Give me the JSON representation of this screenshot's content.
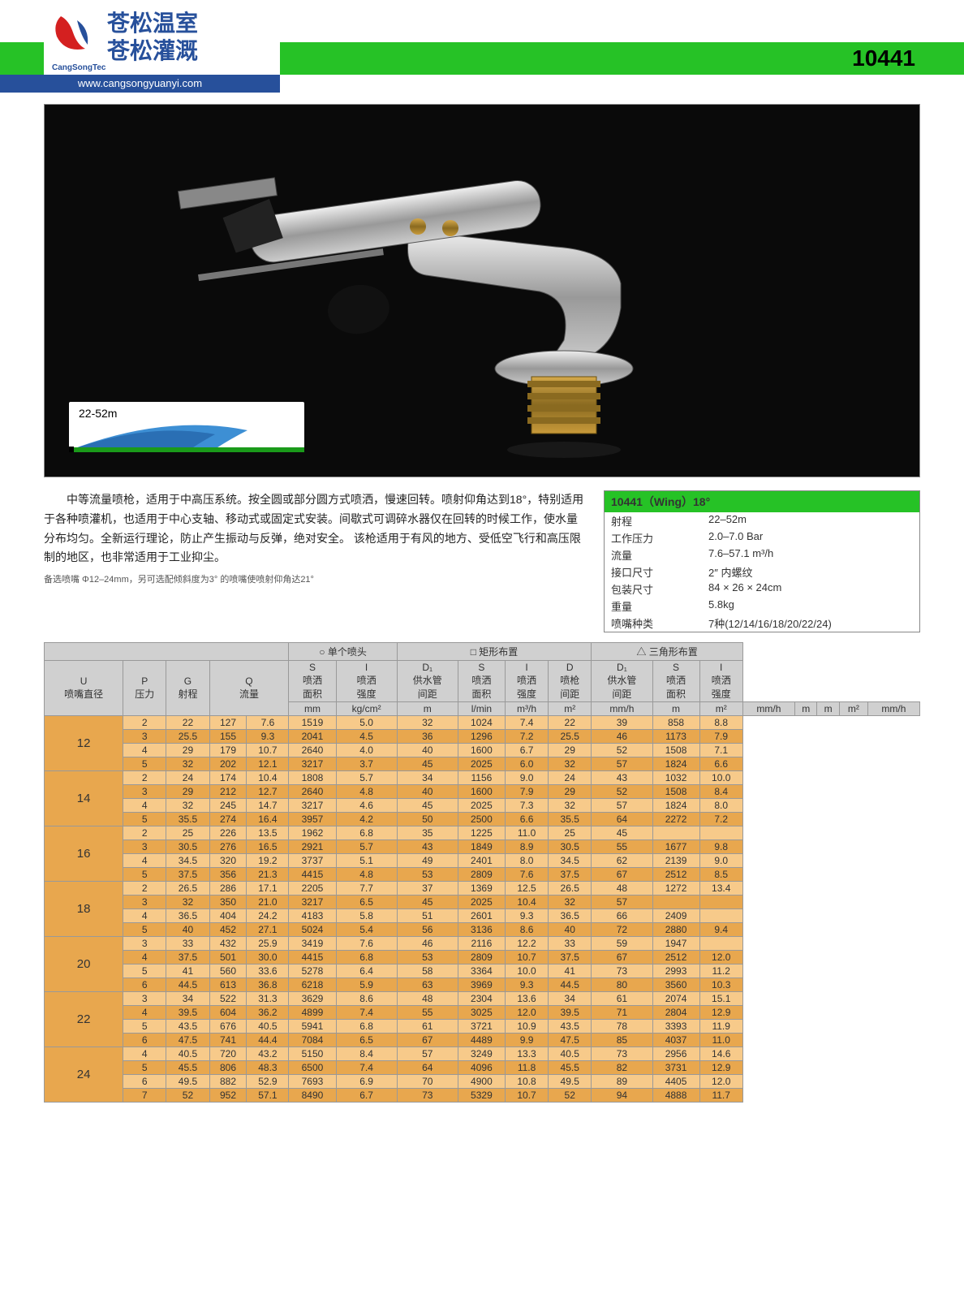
{
  "header": {
    "company_cn1": "苍松温室",
    "company_cn2": "苍松灌溉",
    "company_en": "CangSongTec",
    "url": "www.cangsongyuanyi.com",
    "product_code": "10441"
  },
  "hero": {
    "range_label": "22-52m"
  },
  "description": {
    "body": "中等流量喷枪，适用于中高压系统。按全圆或部分圆方式喷洒，慢速回转。喷射仰角达到18°，特别适用于各种喷灌机，也适用于中心支轴、移动式或固定式安装。间歇式可调碎水器仅在回转的时候工作，使水量分布均匀。全新运行理论，防止产生振动与反弹，绝对安全。 该枪适用于有风的地方、受低空飞行和高压限制的地区，也非常适用于工业抑尘。",
    "note": "备选喷嘴 Φ12–24mm，另可选配倾斜度为3° 的喷嘴使喷射仰角达21°"
  },
  "spec": {
    "title": "10441（Wing）18°",
    "rows": [
      [
        "射程",
        "22–52m"
      ],
      [
        "工作压力",
        "2.0–7.0 Bar"
      ],
      [
        "流量",
        "7.6–57.1 m³/h"
      ],
      [
        "接口尺寸",
        "2″ 内螺纹"
      ],
      [
        "包装尺寸",
        "84 × 26 × 24cm"
      ],
      [
        "重量",
        "5.8kg"
      ],
      [
        "喷嘴种类",
        "7种(12/14/16/18/20/22/24)"
      ]
    ]
  },
  "table": {
    "group_labels": [
      "○ 单个喷头",
      "□ 矩形布置",
      "△ 三角形布置"
    ],
    "headers": {
      "U": "U",
      "U2": "喷嘴直径",
      "P": "P",
      "P2": "压力",
      "G": "G",
      "G2": "射程",
      "Q": "Q",
      "Q2": "流量",
      "S": "S",
      "S2": "喷洒\n面积",
      "I": "I",
      "I2": "喷洒\n强度",
      "D1": "D₁",
      "D12": "供水管\n间距",
      "D": "D",
      "D2": "喷枪\n间距"
    },
    "units": [
      "mm",
      "kg/cm²",
      "m",
      "l/min",
      "m³/h",
      "m²",
      "mm/h",
      "m",
      "m²",
      "mm/h",
      "m",
      "m",
      "m²",
      "mm/h"
    ],
    "groups": [
      {
        "diam": "12",
        "rows": [
          [
            "2",
            "22",
            "127",
            "7.6",
            "1519",
            "5.0",
            "32",
            "1024",
            "7.4",
            "22",
            "39",
            "858",
            "8.8"
          ],
          [
            "3",
            "25.5",
            "155",
            "9.3",
            "2041",
            "4.5",
            "36",
            "1296",
            "7.2",
            "25.5",
            "46",
            "1173",
            "7.9"
          ],
          [
            "4",
            "29",
            "179",
            "10.7",
            "2640",
            "4.0",
            "40",
            "1600",
            "6.7",
            "29",
            "52",
            "1508",
            "7.1"
          ],
          [
            "5",
            "32",
            "202",
            "12.1",
            "3217",
            "3.7",
            "45",
            "2025",
            "6.0",
            "32",
            "57",
            "1824",
            "6.6"
          ]
        ]
      },
      {
        "diam": "14",
        "rows": [
          [
            "2",
            "24",
            "174",
            "10.4",
            "1808",
            "5.7",
            "34",
            "1156",
            "9.0",
            "24",
            "43",
            "1032",
            "10.0"
          ],
          [
            "3",
            "29",
            "212",
            "12.7",
            "2640",
            "4.8",
            "40",
            "1600",
            "7.9",
            "29",
            "52",
            "1508",
            "8.4"
          ],
          [
            "4",
            "32",
            "245",
            "14.7",
            "3217",
            "4.6",
            "45",
            "2025",
            "7.3",
            "32",
            "57",
            "1824",
            "8.0"
          ],
          [
            "5",
            "35.5",
            "274",
            "16.4",
            "3957",
            "4.2",
            "50",
            "2500",
            "6.6",
            "35.5",
            "64",
            "2272",
            "7.2"
          ]
        ]
      },
      {
        "diam": "16",
        "rows": [
          [
            "2",
            "25",
            "226",
            "13.5",
            "1962",
            "6.8",
            "35",
            "1225",
            "11.0",
            "25",
            "45",
            "",
            ""
          ],
          [
            "3",
            "30.5",
            "276",
            "16.5",
            "2921",
            "5.7",
            "43",
            "1849",
            "8.9",
            "30.5",
            "55",
            "1677",
            "9.8"
          ],
          [
            "4",
            "34.5",
            "320",
            "19.2",
            "3737",
            "5.1",
            "49",
            "2401",
            "8.0",
            "34.5",
            "62",
            "2139",
            "9.0"
          ],
          [
            "5",
            "37.5",
            "356",
            "21.3",
            "4415",
            "4.8",
            "53",
            "2809",
            "7.6",
            "37.5",
            "67",
            "2512",
            "8.5"
          ]
        ]
      },
      {
        "diam": "18",
        "rows": [
          [
            "2",
            "26.5",
            "286",
            "17.1",
            "2205",
            "7.7",
            "37",
            "1369",
            "12.5",
            "26.5",
            "48",
            "1272",
            "13.4"
          ],
          [
            "3",
            "32",
            "350",
            "21.0",
            "3217",
            "6.5",
            "45",
            "2025",
            "10.4",
            "32",
            "57",
            "",
            ""
          ],
          [
            "4",
            "36.5",
            "404",
            "24.2",
            "4183",
            "5.8",
            "51",
            "2601",
            "9.3",
            "36.5",
            "66",
            "2409",
            ""
          ],
          [
            "5",
            "40",
            "452",
            "27.1",
            "5024",
            "5.4",
            "56",
            "3136",
            "8.6",
            "40",
            "72",
            "2880",
            "9.4"
          ]
        ]
      },
      {
        "diam": "20",
        "rows": [
          [
            "3",
            "33",
            "432",
            "25.9",
            "3419",
            "7.6",
            "46",
            "2116",
            "12.2",
            "33",
            "59",
            "1947",
            ""
          ],
          [
            "4",
            "37.5",
            "501",
            "30.0",
            "4415",
            "6.8",
            "53",
            "2809",
            "10.7",
            "37.5",
            "67",
            "2512",
            "12.0"
          ],
          [
            "5",
            "41",
            "560",
            "33.6",
            "5278",
            "6.4",
            "58",
            "3364",
            "10.0",
            "41",
            "73",
            "2993",
            "11.2"
          ],
          [
            "6",
            "44.5",
            "613",
            "36.8",
            "6218",
            "5.9",
            "63",
            "3969",
            "9.3",
            "44.5",
            "80",
            "3560",
            "10.3"
          ]
        ]
      },
      {
        "diam": "22",
        "rows": [
          [
            "3",
            "34",
            "522",
            "31.3",
            "3629",
            "8.6",
            "48",
            "2304",
            "13.6",
            "34",
            "61",
            "2074",
            "15.1"
          ],
          [
            "4",
            "39.5",
            "604",
            "36.2",
            "4899",
            "7.4",
            "55",
            "3025",
            "12.0",
            "39.5",
            "71",
            "2804",
            "12.9"
          ],
          [
            "5",
            "43.5",
            "676",
            "40.5",
            "5941",
            "6.8",
            "61",
            "3721",
            "10.9",
            "43.5",
            "78",
            "3393",
            "11.9"
          ],
          [
            "6",
            "47.5",
            "741",
            "44.4",
            "7084",
            "6.5",
            "67",
            "4489",
            "9.9",
            "47.5",
            "85",
            "4037",
            "11.0"
          ]
        ]
      },
      {
        "diam": "24",
        "rows": [
          [
            "4",
            "40.5",
            "720",
            "43.2",
            "5150",
            "8.4",
            "57",
            "3249",
            "13.3",
            "40.5",
            "73",
            "2956",
            "14.6"
          ],
          [
            "5",
            "45.5",
            "806",
            "48.3",
            "6500",
            "7.4",
            "64",
            "4096",
            "11.8",
            "45.5",
            "82",
            "3731",
            "12.9"
          ],
          [
            "6",
            "49.5",
            "882",
            "52.9",
            "7693",
            "6.9",
            "70",
            "4900",
            "10.8",
            "49.5",
            "89",
            "4405",
            "12.0"
          ],
          [
            "7",
            "52",
            "952",
            "57.1",
            "8490",
            "6.7",
            "73",
            "5329",
            "10.7",
            "52",
            "94",
            "4888",
            "11.7"
          ]
        ]
      }
    ]
  },
  "colors": {
    "green": "#26c226",
    "blue": "#27509b",
    "row_light": "#f7ca8a",
    "row_dark": "#e8a74e",
    "header_gray": "#d0d0d0"
  }
}
